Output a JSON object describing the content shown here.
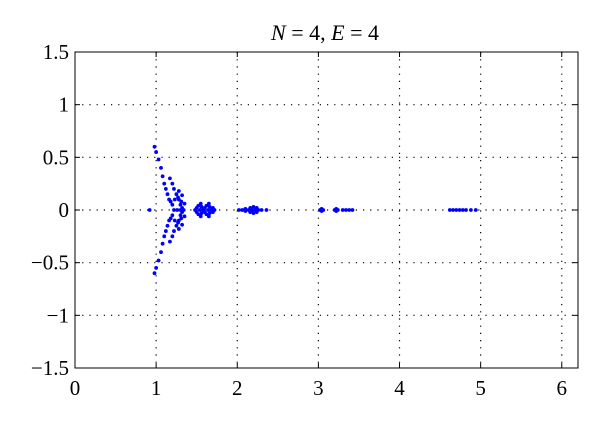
{
  "chart_data": {
    "type": "scatter",
    "title": "",
    "title_parts": {
      "var1": "N",
      "eq1": " = 4, ",
      "var2": "E",
      "eq2": " = 4"
    },
    "xlabel": "",
    "ylabel": "",
    "xlim": [
      0,
      6.2
    ],
    "ylim": [
      -1.5,
      1.5
    ],
    "xticks": [
      0,
      1,
      2,
      3,
      4,
      5,
      6
    ],
    "yticks": [
      -1.5,
      -1,
      -0.5,
      0,
      0.5,
      1,
      1.5
    ],
    "xtick_labels": [
      "0",
      "1",
      "2",
      "3",
      "4",
      "5",
      "6"
    ],
    "ytick_labels": [
      "−1.5",
      "−1",
      "−0.5",
      "0",
      "0.5",
      "1",
      "1.5"
    ],
    "grid": true,
    "grid_style": "dotted",
    "marker_color": "#0000ff",
    "series": [
      {
        "name": "",
        "points": [
          [
            0.92,
            0.0
          ],
          [
            0.98,
            0.6
          ],
          [
            1.0,
            0.55
          ],
          [
            1.03,
            0.48
          ],
          [
            1.06,
            0.4
          ],
          [
            1.08,
            0.32
          ],
          [
            1.1,
            0.25
          ],
          [
            1.12,
            0.2
          ],
          [
            1.14,
            0.15
          ],
          [
            1.16,
            0.1
          ],
          [
            1.18,
            0.08
          ],
          [
            1.2,
            0.05
          ],
          [
            0.98,
            -0.6
          ],
          [
            1.0,
            -0.55
          ],
          [
            1.03,
            -0.48
          ],
          [
            1.06,
            -0.4
          ],
          [
            1.08,
            -0.32
          ],
          [
            1.1,
            -0.25
          ],
          [
            1.12,
            -0.2
          ],
          [
            1.14,
            -0.15
          ],
          [
            1.16,
            -0.1
          ],
          [
            1.18,
            -0.08
          ],
          [
            1.2,
            -0.05
          ],
          [
            1.17,
            0.3
          ],
          [
            1.2,
            0.25
          ],
          [
            1.22,
            0.2
          ],
          [
            1.25,
            0.15
          ],
          [
            1.28,
            0.1
          ],
          [
            1.3,
            0.05
          ],
          [
            1.32,
            0.02
          ],
          [
            1.17,
            -0.3
          ],
          [
            1.2,
            -0.25
          ],
          [
            1.22,
            -0.2
          ],
          [
            1.25,
            -0.15
          ],
          [
            1.28,
            -0.1
          ],
          [
            1.3,
            -0.05
          ],
          [
            1.32,
            -0.02
          ],
          [
            1.22,
            0.0
          ],
          [
            1.26,
            0.0
          ],
          [
            1.3,
            0.0
          ],
          [
            1.34,
            0.0
          ],
          [
            1.23,
            0.1
          ],
          [
            1.27,
            0.12
          ],
          [
            1.31,
            0.08
          ],
          [
            1.35,
            0.06
          ],
          [
            1.23,
            -0.1
          ],
          [
            1.27,
            -0.12
          ],
          [
            1.31,
            -0.08
          ],
          [
            1.35,
            -0.06
          ],
          [
            1.28,
            0.18
          ],
          [
            1.28,
            -0.18
          ],
          [
            1.32,
            0.14
          ],
          [
            1.32,
            -0.14
          ],
          [
            1.48,
            0.0
          ],
          [
            1.5,
            0.02
          ],
          [
            1.5,
            -0.02
          ],
          [
            1.52,
            0.04
          ],
          [
            1.52,
            -0.04
          ],
          [
            1.54,
            0.0
          ],
          [
            1.56,
            0.03
          ],
          [
            1.56,
            -0.03
          ],
          [
            1.58,
            0.0
          ],
          [
            1.6,
            0.02
          ],
          [
            1.6,
            -0.02
          ],
          [
            1.62,
            0.04
          ],
          [
            1.62,
            -0.04
          ],
          [
            1.64,
            0.0
          ],
          [
            1.66,
            0.03
          ],
          [
            1.66,
            -0.03
          ],
          [
            1.68,
            0.0
          ],
          [
            1.7,
            0.02
          ],
          [
            1.7,
            -0.02
          ],
          [
            1.72,
            0.0
          ],
          [
            1.55,
            0.06
          ],
          [
            1.55,
            -0.06
          ],
          [
            1.65,
            0.06
          ],
          [
            1.65,
            -0.06
          ],
          [
            2.02,
            0.0
          ],
          [
            2.06,
            0.0
          ],
          [
            2.1,
            0.01
          ],
          [
            2.1,
            -0.01
          ],
          [
            2.14,
            0.0
          ],
          [
            2.16,
            0.02
          ],
          [
            2.16,
            -0.02
          ],
          [
            2.18,
            0.0
          ],
          [
            2.2,
            0.03
          ],
          [
            2.2,
            -0.03
          ],
          [
            2.22,
            0.0
          ],
          [
            2.24,
            0.02
          ],
          [
            2.24,
            -0.02
          ],
          [
            2.26,
            0.0
          ],
          [
            2.3,
            0.0
          ],
          [
            2.36,
            0.0
          ],
          [
            3.02,
            0.0
          ],
          [
            3.04,
            0.01
          ],
          [
            3.04,
            -0.01
          ],
          [
            3.06,
            0.0
          ],
          [
            3.2,
            0.0
          ],
          [
            3.22,
            0.01
          ],
          [
            3.22,
            -0.01
          ],
          [
            3.24,
            0.0
          ],
          [
            3.3,
            0.0
          ],
          [
            3.34,
            0.0
          ],
          [
            3.38,
            0.0
          ],
          [
            3.42,
            0.0
          ],
          [
            4.62,
            0.0
          ],
          [
            4.66,
            0.0
          ],
          [
            4.7,
            0.0
          ],
          [
            4.74,
            0.0
          ],
          [
            4.78,
            0.0
          ],
          [
            4.82,
            0.0
          ],
          [
            4.88,
            0.0
          ],
          [
            4.94,
            0.0
          ]
        ]
      }
    ]
  }
}
